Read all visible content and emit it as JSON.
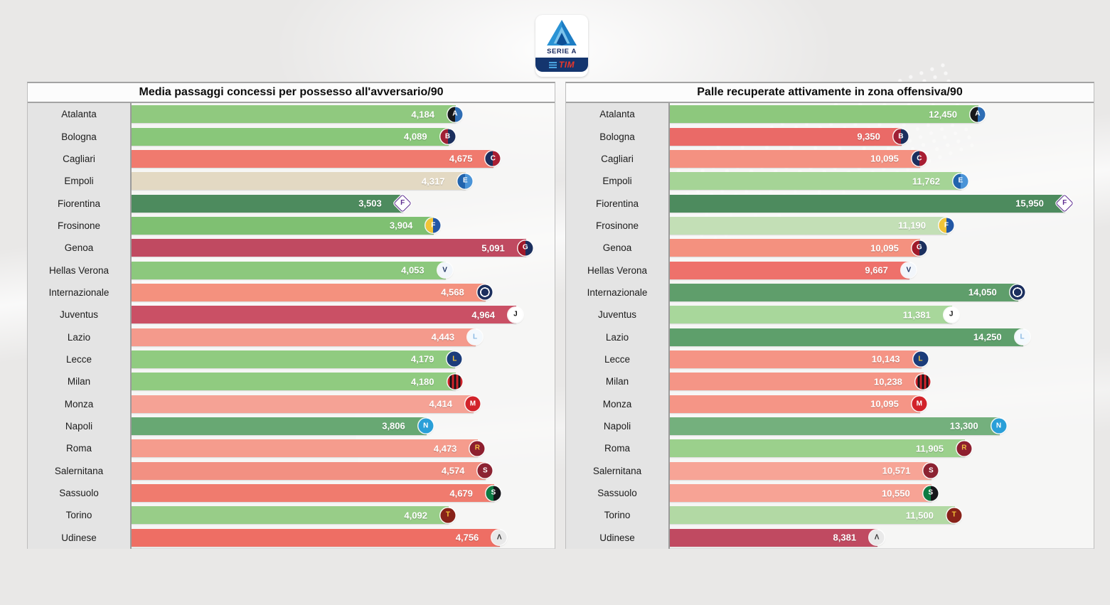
{
  "league_logo": {
    "serie_a_label": "SERIE A",
    "tim_label": "TIM"
  },
  "chart_data": [
    {
      "type": "bar",
      "orientation": "horizontal",
      "title": "Media passaggi concessi per possesso all'avversario/90",
      "xlabel": "",
      "ylabel": "",
      "xlim": [
        0,
        5.46
      ],
      "grid": false,
      "legend": false,
      "categories": [
        "Atalanta",
        "Bologna",
        "Cagliari",
        "Empoli",
        "Fiorentina",
        "Frosinone",
        "Genoa",
        "Hellas Verona",
        "Internazionale",
        "Juventus",
        "Lazio",
        "Lecce",
        "Milan",
        "Monza",
        "Napoli",
        "Roma",
        "Salernitana",
        "Sassuolo",
        "Torino",
        "Udinese"
      ],
      "values": [
        4.184,
        4.089,
        4.675,
        4.317,
        3.503,
        3.904,
        5.091,
        4.053,
        4.568,
        4.964,
        4.443,
        4.179,
        4.18,
        4.414,
        3.806,
        4.473,
        4.574,
        4.679,
        4.092,
        4.756
      ],
      "labels": [
        "4,184",
        "4,089",
        "4,675",
        "4,317",
        "3,503",
        "3,904",
        "5,091",
        "4,053",
        "4,568",
        "4,964",
        "4,443",
        "4,179",
        "4,180",
        "4,414",
        "3,806",
        "4,473",
        "4,574",
        "4,679",
        "4,092",
        "4,756"
      ],
      "bar_colors": [
        "#90c97f",
        "#89c77a",
        "#f07a6e",
        "#e3d9c3",
        "#4d8b5e",
        "#7fc072",
        "#c04a61",
        "#8cc87d",
        "#f4917e",
        "#ca5065",
        "#f49a8c",
        "#90cb80",
        "#90cb80",
        "#f5a295",
        "#68a873",
        "#f59c8d",
        "#f29082",
        "#f07b6e",
        "#98cd88",
        "#ee6e64"
      ]
    },
    {
      "type": "bar",
      "orientation": "horizontal",
      "title": "Palle recuperate attivamente in zona offensiva/90",
      "xlabel": "",
      "ylabel": "",
      "xlim": [
        0,
        17.1
      ],
      "grid": false,
      "legend": false,
      "categories": [
        "Atalanta",
        "Bologna",
        "Cagliari",
        "Empoli",
        "Fiorentina",
        "Frosinone",
        "Genoa",
        "Hellas Verona",
        "Internazionale",
        "Juventus",
        "Lazio",
        "Lecce",
        "Milan",
        "Monza",
        "Napoli",
        "Roma",
        "Salernitana",
        "Sassuolo",
        "Torino",
        "Udinese"
      ],
      "values": [
        12.45,
        9.35,
        10.095,
        11.762,
        15.95,
        11.19,
        10.095,
        9.667,
        14.05,
        11.381,
        14.25,
        10.143,
        10.238,
        10.095,
        13.3,
        11.905,
        10.571,
        10.55,
        11.5,
        8.381
      ],
      "labels": [
        "12,450",
        "9,350",
        "10,095",
        "11,762",
        "15,950",
        "11,190",
        "10,095",
        "9,667",
        "14,050",
        "11,381",
        "14,250",
        "10,143",
        "10,238",
        "10,095",
        "13,300",
        "11,905",
        "10,571",
        "10,550",
        "11,500",
        "8,381"
      ],
      "bar_colors": [
        "#8dc87d",
        "#ea6a67",
        "#f49181",
        "#a5d496",
        "#4d8b5e",
        "#c3dfb6",
        "#f4917f",
        "#ee716b",
        "#5f9e6b",
        "#a8d79b",
        "#5e9f6b",
        "#f59485",
        "#f59586",
        "#f59586",
        "#74b07d",
        "#9bd08c",
        "#f7a496",
        "#f7a395",
        "#b2d9a4",
        "#c04a61"
      ]
    }
  ],
  "team_crests": {
    "Atalanta": {
      "type": "split",
      "c1": "#17171b",
      "c2": "#2e6db4",
      "glyph": "A",
      "fg": "#ffffff"
    },
    "Bologna": {
      "type": "split",
      "c1": "#a02035",
      "c2": "#1b2f5e",
      "glyph": "B",
      "fg": "#ffffff"
    },
    "Cagliari": {
      "type": "split",
      "c1": "#1b2f5e",
      "c2": "#a81e33",
      "glyph": "C",
      "fg": "#ffffff"
    },
    "Empoli": {
      "type": "split",
      "c1": "#2264ad",
      "c2": "#4a94d8",
      "glyph": "E",
      "fg": "#ffffff"
    },
    "Fiorentina": {
      "type": "diamond",
      "c1": "#ffffff",
      "c2": "#ffffff",
      "glyph": "F",
      "fg": "#5e2d91"
    },
    "Frosinone": {
      "type": "split",
      "c1": "#f2c437",
      "c2": "#2257a5",
      "glyph": "F",
      "fg": "#ffffff"
    },
    "Genoa": {
      "type": "split",
      "c1": "#a01a2b",
      "c2": "#1b2f5e",
      "glyph": "G",
      "fg": "#ffffff"
    },
    "Hellas Verona": {
      "type": "solid",
      "c1": "#f2f6fb",
      "c2": "#f2f6fb",
      "glyph": "V",
      "fg": "#1b2f5e"
    },
    "Internazionale": {
      "type": "ring",
      "c1": "#1b2f5e",
      "c2": "#ffffff",
      "glyph": "",
      "fg": "#ffffff"
    },
    "Juventus": {
      "type": "solid",
      "c1": "#ffffff",
      "c2": "#ffffff",
      "glyph": "J",
      "fg": "#111111"
    },
    "Lazio": {
      "type": "solid",
      "c1": "#f4f9fd",
      "c2": "#f4f9fd",
      "glyph": "L",
      "fg": "#8ab9e3"
    },
    "Lecce": {
      "type": "solid",
      "c1": "#1b3c7a",
      "c2": "#1b3c7a",
      "glyph": "L",
      "fg": "#f2c437"
    },
    "Milan": {
      "type": "stripes",
      "c1": "#d2232a",
      "c2": "#16161a",
      "glyph": "",
      "fg": "#ffffff"
    },
    "Monza": {
      "type": "solid",
      "c1": "#d2232a",
      "c2": "#d2232a",
      "glyph": "M",
      "fg": "#ffffff"
    },
    "Napoli": {
      "type": "solid",
      "c1": "#2a9fd8",
      "c2": "#2a9fd8",
      "glyph": "N",
      "fg": "#ffffff"
    },
    "Roma": {
      "type": "solid",
      "c1": "#8e1f2f",
      "c2": "#8e1f2f",
      "glyph": "R",
      "fg": "#f0bc42"
    },
    "Salernitana": {
      "type": "solid",
      "c1": "#8c2332",
      "c2": "#8c2332",
      "glyph": "S",
      "fg": "#ffffff"
    },
    "Sassuolo": {
      "type": "split",
      "c1": "#0c7b43",
      "c2": "#16161a",
      "glyph": "S",
      "fg": "#ffffff"
    },
    "Torino": {
      "type": "solid",
      "c1": "#882219",
      "c2": "#882219",
      "glyph": "T",
      "fg": "#f2c437"
    },
    "Udinese": {
      "type": "solid",
      "c1": "#e9e9e9",
      "c2": "#e9e9e9",
      "glyph": "Λ",
      "fg": "#3a3a3a"
    }
  }
}
